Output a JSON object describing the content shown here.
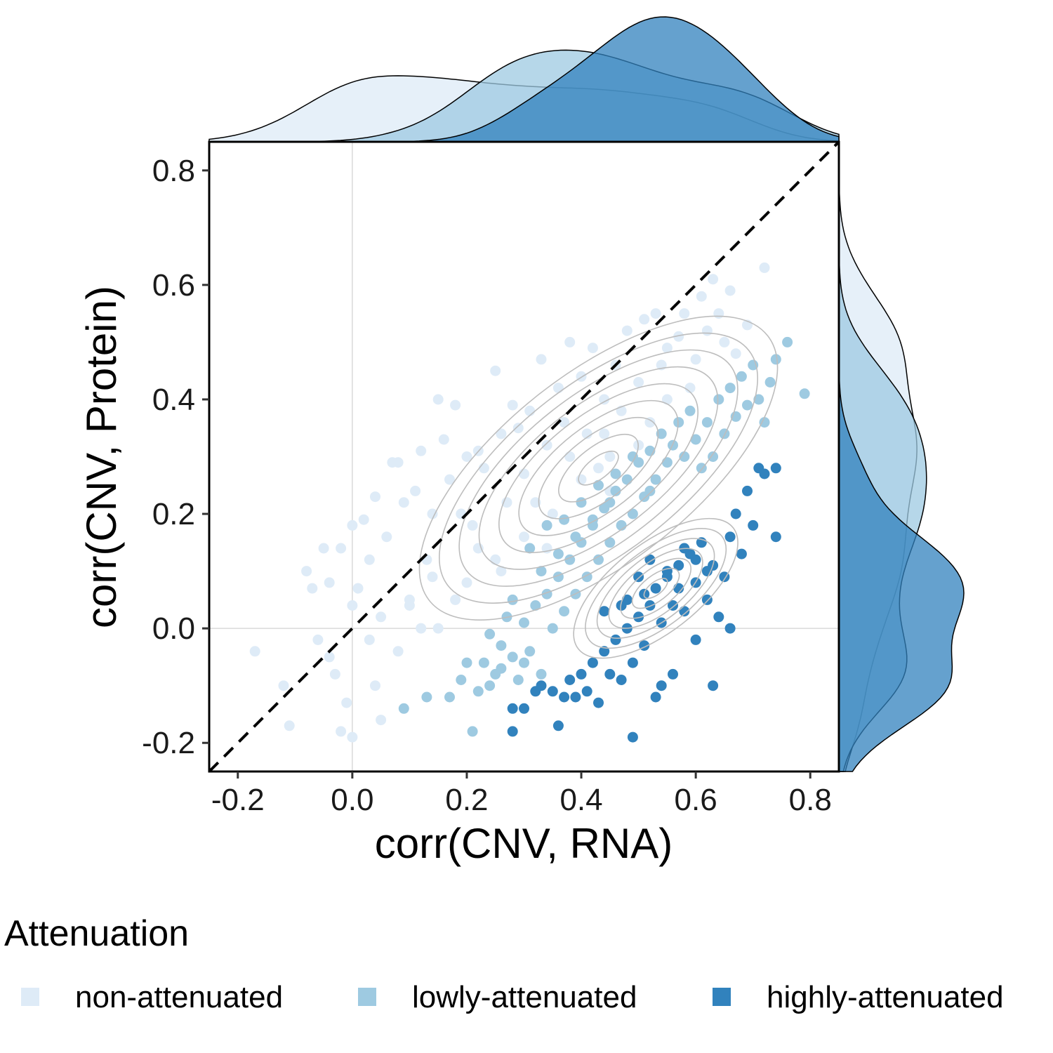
{
  "chart_data": {
    "type": "scatter",
    "xlabel": "corr(CNV, RNA)",
    "ylabel": "corr(CNV, Protein)",
    "xlim": [
      -0.25,
      0.85
    ],
    "ylim": [
      -0.25,
      0.85
    ],
    "x_ticks": [
      -0.2,
      0.0,
      0.2,
      0.4,
      0.6,
      0.8
    ],
    "x_tick_labels": [
      "-0.2",
      "0.0",
      "0.2",
      "0.4",
      "0.6",
      "0.8"
    ],
    "y_ticks": [
      -0.2,
      0.0,
      0.2,
      0.4,
      0.6,
      0.8
    ],
    "y_tick_labels": [
      "-0.2",
      "0.0",
      "0.2",
      "0.4",
      "0.6",
      "0.8"
    ],
    "reference_line": {
      "type": "dashed",
      "slope": 1,
      "intercept": 0
    },
    "reference_hv_lines": {
      "x": 0,
      "y": 0
    },
    "grid": false,
    "marginal_density": {
      "top": "x",
      "right": "y"
    },
    "density_contours": true,
    "legend": {
      "title": "Attenuation",
      "position": "bottom",
      "entries": [
        "non-attenuated",
        "lowly-attenuated",
        "highly-attenuated"
      ]
    },
    "series": [
      {
        "name": "non-attenuated",
        "color": "#deebf7",
        "contour_center": [
          0.43,
          0.28
        ],
        "approx_points": [
          [
            -0.17,
            -0.04
          ],
          [
            -0.12,
            -0.1
          ],
          [
            -0.11,
            -0.17
          ],
          [
            -0.08,
            0.1
          ],
          [
            -0.07,
            0.07
          ],
          [
            -0.06,
            -0.02
          ],
          [
            -0.05,
            0.14
          ],
          [
            -0.04,
            0.08
          ],
          [
            -0.03,
            -0.08
          ],
          [
            -0.02,
            0.14
          ],
          [
            -0.02,
            -0.18
          ],
          [
            -0.01,
            -0.13
          ],
          [
            0.0,
            -0.19
          ],
          [
            0.0,
            0.18
          ],
          [
            0.01,
            0.07
          ],
          [
            0.02,
            0.19
          ],
          [
            0.03,
            0.12
          ],
          [
            0.04,
            -0.1
          ],
          [
            0.04,
            0.23
          ],
          [
            0.05,
            -0.16
          ],
          [
            0.06,
            0.16
          ],
          [
            0.07,
            0.29
          ],
          [
            0.08,
            0.29
          ],
          [
            0.09,
            0.22
          ],
          [
            0.1,
            0.05
          ],
          [
            0.11,
            0.24
          ],
          [
            0.12,
            0.31
          ],
          [
            0.13,
            0.12
          ],
          [
            0.14,
            0.2
          ],
          [
            0.15,
            0.4
          ],
          [
            0.16,
            0.33
          ],
          [
            0.17,
            0.26
          ],
          [
            0.18,
            0.39
          ],
          [
            0.19,
            0.2
          ],
          [
            0.2,
            0.3
          ],
          [
            0.21,
            0.18
          ],
          [
            0.22,
            0.31
          ],
          [
            0.23,
            0.28
          ],
          [
            0.25,
            0.45
          ],
          [
            0.26,
            0.34
          ],
          [
            0.27,
            0.22
          ],
          [
            0.28,
            0.39
          ],
          [
            0.29,
            0.35
          ],
          [
            0.3,
            0.27
          ],
          [
            0.31,
            0.38
          ],
          [
            0.33,
            0.47
          ],
          [
            0.34,
            0.32
          ],
          [
            0.36,
            0.42
          ],
          [
            0.37,
            0.36
          ],
          [
            0.38,
            0.5
          ],
          [
            0.4,
            0.44
          ],
          [
            0.41,
            0.34
          ],
          [
            0.42,
            0.49
          ],
          [
            0.43,
            0.28
          ],
          [
            0.44,
            0.4
          ],
          [
            0.45,
            0.24
          ],
          [
            0.46,
            0.46
          ],
          [
            0.47,
            0.38
          ],
          [
            0.48,
            0.52
          ],
          [
            0.5,
            0.43
          ],
          [
            0.51,
            0.54
          ],
          [
            0.52,
            0.36
          ],
          [
            0.53,
            0.55
          ],
          [
            0.54,
            0.46
          ],
          [
            0.55,
            0.49
          ],
          [
            0.57,
            0.51
          ],
          [
            0.58,
            0.55
          ],
          [
            0.59,
            0.42
          ],
          [
            0.6,
            0.47
          ],
          [
            0.61,
            0.58
          ],
          [
            0.62,
            0.52
          ],
          [
            0.63,
            0.61
          ],
          [
            0.64,
            0.55
          ],
          [
            0.65,
            0.5
          ],
          [
            0.66,
            0.59
          ],
          [
            0.67,
            0.48
          ],
          [
            0.69,
            0.53
          ],
          [
            0.72,
            0.63
          ],
          [
            0.1,
            0.04
          ],
          [
            0.15,
            0.0
          ],
          [
            0.2,
            0.08
          ],
          [
            0.25,
            0.12
          ],
          [
            0.3,
            0.16
          ],
          [
            0.35,
            0.2
          ],
          [
            0.4,
            0.26
          ],
          [
            0.45,
            0.3
          ],
          [
            0.5,
            0.32
          ],
          [
            0.05,
            0.02
          ],
          [
            0.0,
            0.04
          ],
          [
            0.08,
            -0.04
          ],
          [
            0.14,
            0.09
          ],
          [
            0.22,
            0.14
          ],
          [
            0.32,
            0.22
          ],
          [
            0.38,
            0.3
          ],
          [
            0.44,
            0.34
          ],
          [
            0.55,
            0.4
          ],
          [
            -0.04,
            -0.05
          ],
          [
            0.03,
            -0.02
          ],
          [
            0.12,
            0.0
          ],
          [
            0.18,
            0.05
          ],
          [
            0.26,
            0.1
          ],
          [
            0.34,
            0.14
          ]
        ]
      },
      {
        "name": "lowly-attenuated",
        "color": "#9ecae1",
        "approx_points": [
          [
            0.09,
            -0.14
          ],
          [
            0.13,
            -0.12
          ],
          [
            0.17,
            -0.12
          ],
          [
            0.19,
            -0.09
          ],
          [
            0.2,
            -0.06
          ],
          [
            0.21,
            -0.18
          ],
          [
            0.22,
            -0.11
          ],
          [
            0.23,
            -0.06
          ],
          [
            0.24,
            -0.01
          ],
          [
            0.25,
            -0.08
          ],
          [
            0.26,
            -0.03
          ],
          [
            0.27,
            0.02
          ],
          [
            0.28,
            -0.05
          ],
          [
            0.29,
            -0.09
          ],
          [
            0.3,
            0.01
          ],
          [
            0.31,
            -0.04
          ],
          [
            0.32,
            0.04
          ],
          [
            0.33,
            -0.08
          ],
          [
            0.34,
            0.06
          ],
          [
            0.35,
            0.0
          ],
          [
            0.36,
            0.09
          ],
          [
            0.37,
            0.03
          ],
          [
            0.38,
            0.12
          ],
          [
            0.39,
            0.06
          ],
          [
            0.4,
            0.15
          ],
          [
            0.41,
            0.09
          ],
          [
            0.42,
            0.18
          ],
          [
            0.43,
            0.12
          ],
          [
            0.44,
            0.21
          ],
          [
            0.45,
            0.15
          ],
          [
            0.46,
            0.24
          ],
          [
            0.47,
            0.18
          ],
          [
            0.48,
            0.26
          ],
          [
            0.49,
            0.2
          ],
          [
            0.5,
            0.29
          ],
          [
            0.51,
            0.23
          ],
          [
            0.52,
            0.31
          ],
          [
            0.53,
            0.26
          ],
          [
            0.54,
            0.34
          ],
          [
            0.55,
            0.29
          ],
          [
            0.56,
            0.32
          ],
          [
            0.57,
            0.36
          ],
          [
            0.58,
            0.3
          ],
          [
            0.59,
            0.38
          ],
          [
            0.6,
            0.33
          ],
          [
            0.61,
            0.28
          ],
          [
            0.62,
            0.36
          ],
          [
            0.63,
            0.3
          ],
          [
            0.64,
            0.4
          ],
          [
            0.65,
            0.34
          ],
          [
            0.66,
            0.42
          ],
          [
            0.67,
            0.37
          ],
          [
            0.68,
            0.44
          ],
          [
            0.69,
            0.39
          ],
          [
            0.7,
            0.46
          ],
          [
            0.71,
            0.4
          ],
          [
            0.72,
            0.36
          ],
          [
            0.73,
            0.43
          ],
          [
            0.74,
            0.47
          ],
          [
            0.76,
            0.5
          ],
          [
            0.79,
            0.41
          ],
          [
            0.31,
            0.14
          ],
          [
            0.34,
            0.18
          ],
          [
            0.37,
            0.19
          ],
          [
            0.4,
            0.22
          ],
          [
            0.43,
            0.25
          ],
          [
            0.46,
            0.27
          ],
          [
            0.49,
            0.3
          ],
          [
            0.52,
            0.24
          ],
          [
            0.33,
            0.1
          ],
          [
            0.36,
            0.13
          ],
          [
            0.39,
            0.16
          ],
          [
            0.42,
            0.19
          ],
          [
            0.45,
            0.22
          ],
          [
            0.26,
            -0.07
          ],
          [
            0.24,
            -0.1
          ],
          [
            0.28,
            0.05
          ],
          [
            0.3,
            -0.06
          ]
        ]
      },
      {
        "name": "highly-attenuated",
        "color": "#3182bd",
        "contour_center": [
          0.53,
          0.07
        ],
        "approx_points": [
          [
            0.28,
            -0.18
          ],
          [
            0.28,
            -0.14
          ],
          [
            0.3,
            -0.14
          ],
          [
            0.32,
            -0.11
          ],
          [
            0.33,
            -0.1
          ],
          [
            0.35,
            -0.11
          ],
          [
            0.36,
            -0.17
          ],
          [
            0.37,
            -0.12
          ],
          [
            0.38,
            -0.09
          ],
          [
            0.39,
            -0.12
          ],
          [
            0.4,
            -0.08
          ],
          [
            0.41,
            -0.11
          ],
          [
            0.42,
            -0.06
          ],
          [
            0.43,
            -0.13
          ],
          [
            0.44,
            -0.04
          ],
          [
            0.45,
            -0.08
          ],
          [
            0.46,
            -0.02
          ],
          [
            0.47,
            -0.09
          ],
          [
            0.48,
            0.0
          ],
          [
            0.49,
            -0.19
          ],
          [
            0.49,
            -0.06
          ],
          [
            0.5,
            0.02
          ],
          [
            0.51,
            -0.03
          ],
          [
            0.52,
            0.04
          ],
          [
            0.53,
            -0.12
          ],
          [
            0.53,
            0.07
          ],
          [
            0.54,
            0.01
          ],
          [
            0.55,
            0.09
          ],
          [
            0.56,
            -0.08
          ],
          [
            0.56,
            0.04
          ],
          [
            0.57,
            0.11
          ],
          [
            0.58,
            0.03
          ],
          [
            0.59,
            0.13
          ],
          [
            0.6,
            -0.02
          ],
          [
            0.6,
            0.08
          ],
          [
            0.61,
            0.15
          ],
          [
            0.62,
            0.05
          ],
          [
            0.63,
            0.11
          ],
          [
            0.64,
            0.02
          ],
          [
            0.65,
            0.09
          ],
          [
            0.66,
            0.16
          ],
          [
            0.67,
            0.2
          ],
          [
            0.68,
            0.13
          ],
          [
            0.69,
            0.24
          ],
          [
            0.7,
            0.18
          ],
          [
            0.71,
            0.28
          ],
          [
            0.72,
            0.27
          ],
          [
            0.74,
            0.28
          ],
          [
            0.74,
            0.16
          ],
          [
            0.63,
            -0.1
          ],
          [
            0.54,
            -0.1
          ],
          [
            0.66,
            0.0
          ],
          [
            0.62,
            0.1
          ],
          [
            0.58,
            0.14
          ],
          [
            0.47,
            0.04
          ],
          [
            0.44,
            0.03
          ],
          [
            0.51,
            0.06
          ],
          [
            0.55,
            0.1
          ],
          [
            0.57,
            0.07
          ],
          [
            0.6,
            0.12
          ],
          [
            0.5,
            0.09
          ],
          [
            0.52,
            0.12
          ],
          [
            0.48,
            0.05
          ]
        ]
      }
    ]
  }
}
